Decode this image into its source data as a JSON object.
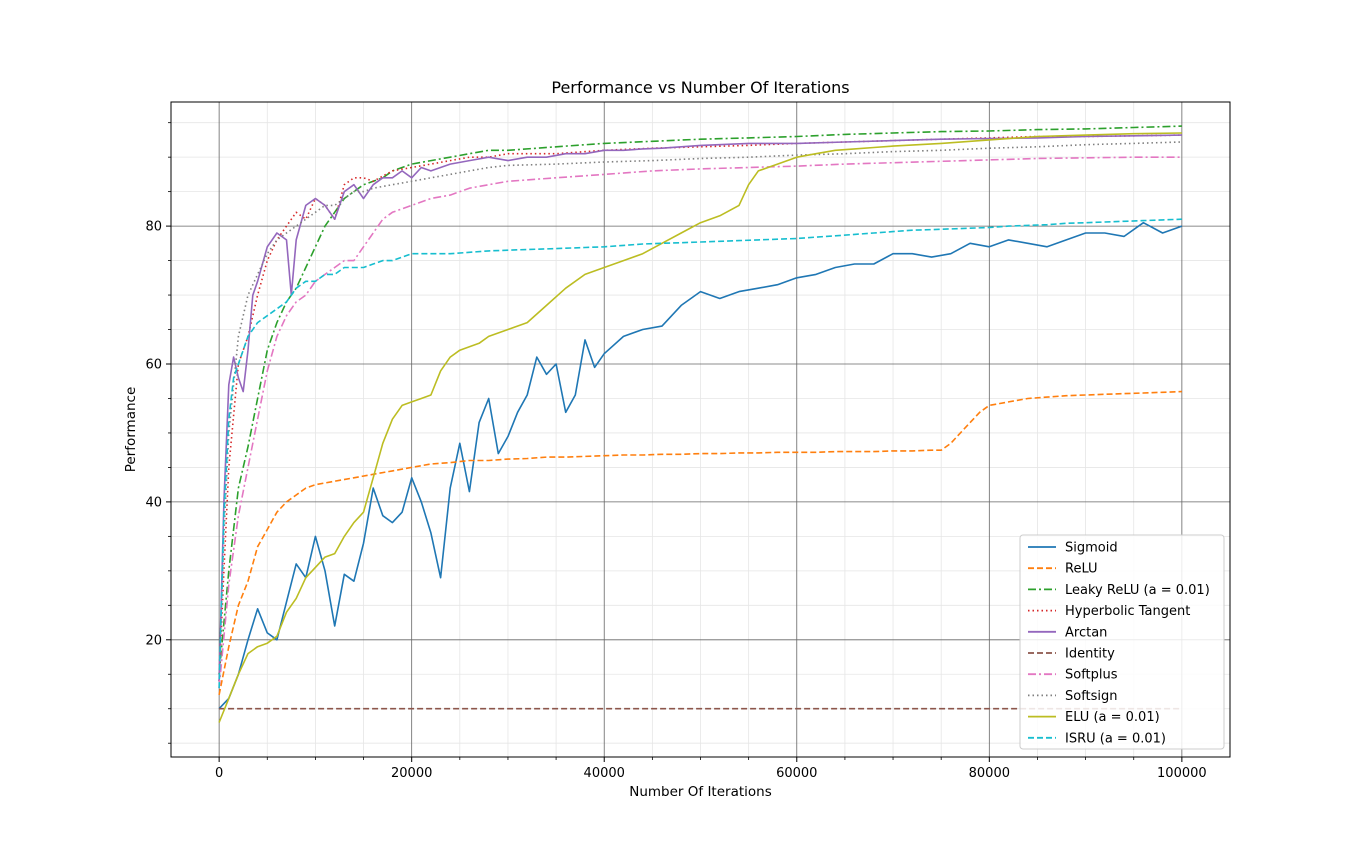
{
  "chart_data": {
    "type": "line",
    "title": "Performance vs Number Of Iterations",
    "xlabel": "Number Of Iterations",
    "ylabel": "Performance",
    "xlim": [
      -5000,
      105000
    ],
    "ylim": [
      3,
      98
    ],
    "xticks": [
      0,
      20000,
      40000,
      60000,
      80000,
      100000
    ],
    "yticks": [
      20,
      40,
      60,
      80
    ],
    "grid": true,
    "legend_position": "lower right",
    "series": [
      {
        "name": "Sigmoid",
        "color": "#1f77b4",
        "dash": "solid",
        "x": [
          0,
          1000,
          2000,
          3000,
          4000,
          5000,
          6000,
          7000,
          8000,
          9000,
          10000,
          11000,
          12000,
          13000,
          14000,
          15000,
          16000,
          17000,
          18000,
          19000,
          20000,
          21000,
          22000,
          23000,
          24000,
          25000,
          26000,
          27000,
          28000,
          29000,
          30000,
          31000,
          32000,
          33000,
          34000,
          35000,
          36000,
          37000,
          38000,
          39000,
          40000,
          42000,
          44000,
          46000,
          48000,
          50000,
          52000,
          54000,
          56000,
          58000,
          60000,
          62000,
          64000,
          66000,
          68000,
          70000,
          72000,
          74000,
          76000,
          78000,
          80000,
          82000,
          84000,
          86000,
          88000,
          90000,
          92000,
          94000,
          96000,
          98000,
          100000
        ],
        "y": [
          10,
          11.5,
          15,
          20,
          24.5,
          21,
          20,
          25.5,
          31,
          29,
          35,
          30,
          22,
          29.5,
          28.5,
          34,
          42,
          38,
          37,
          38.5,
          43.5,
          40,
          35.5,
          29,
          42,
          48.5,
          41.5,
          51.5,
          55,
          47,
          49.5,
          53,
          55.5,
          61,
          58.5,
          60,
          53,
          55.5,
          63.5,
          59.5,
          61.5,
          64,
          65,
          65.5,
          68.5,
          70.5,
          69.5,
          70.5,
          71,
          71.5,
          72.5,
          73,
          74,
          74.5,
          74.5,
          76,
          76,
          75.5,
          76,
          77.5,
          77,
          78,
          77.5,
          77,
          78,
          79,
          79,
          78.5,
          80.5,
          79,
          80
        ]
      },
      {
        "name": "ReLU",
        "color": "#ff7f0e",
        "dash": "6,3",
        "x": [
          0,
          1000,
          2000,
          3000,
          4000,
          5000,
          6000,
          7000,
          8000,
          9000,
          10000,
          12000,
          14000,
          16000,
          18000,
          20000,
          22000,
          24000,
          26000,
          28000,
          30000,
          32000,
          34000,
          36000,
          38000,
          40000,
          42000,
          44000,
          46000,
          48000,
          50000,
          52000,
          54000,
          56000,
          58000,
          60000,
          62000,
          64000,
          66000,
          68000,
          70000,
          72000,
          74000,
          75000,
          76000,
          77000,
          78000,
          79000,
          80000,
          82000,
          84000,
          86000,
          88000,
          90000,
          92000,
          94000,
          96000,
          98000,
          100000
        ],
        "y": [
          12,
          19,
          25,
          28.5,
          33.5,
          36,
          38.5,
          40,
          41,
          42,
          42.5,
          43,
          43.5,
          44,
          44.5,
          45,
          45.5,
          45.7,
          46,
          46,
          46.2,
          46.3,
          46.5,
          46.5,
          46.6,
          46.7,
          46.8,
          46.8,
          46.9,
          46.9,
          47,
          47,
          47.1,
          47.1,
          47.2,
          47.2,
          47.2,
          47.3,
          47.3,
          47.3,
          47.4,
          47.4,
          47.5,
          47.5,
          48.5,
          50,
          51.5,
          53,
          54,
          54.5,
          55,
          55.2,
          55.4,
          55.5,
          55.6,
          55.7,
          55.8,
          55.9,
          56
        ]
      },
      {
        "name": "Leaky ReLU (a = 0.01)",
        "color": "#2ca02c",
        "dash": "8,3,2,3",
        "x": [
          0,
          1000,
          2000,
          3000,
          4000,
          5000,
          6000,
          7000,
          8000,
          9000,
          10000,
          11000,
          12000,
          13000,
          14000,
          15000,
          16000,
          17000,
          18000,
          20000,
          22000,
          24000,
          26000,
          28000,
          30000,
          35000,
          40000,
          45000,
          50000,
          55000,
          60000,
          65000,
          70000,
          75000,
          80000,
          85000,
          90000,
          95000,
          100000
        ],
        "y": [
          15,
          30,
          42,
          48,
          55,
          62,
          66,
          69,
          71,
          74,
          77,
          80,
          82,
          84,
          85,
          86,
          86.5,
          87,
          88,
          89,
          89.5,
          90,
          90.5,
          91,
          91,
          91.5,
          92,
          92.3,
          92.6,
          92.8,
          93,
          93.3,
          93.5,
          93.7,
          93.8,
          94,
          94.1,
          94.3,
          94.5
        ]
      },
      {
        "name": "Hyperbolic Tangent",
        "color": "#d62728",
        "dash": "1.5,3",
        "x": [
          0,
          500,
          1000,
          2000,
          3000,
          4000,
          5000,
          6000,
          7000,
          8000,
          9000,
          10000,
          11000,
          12000,
          13000,
          14000,
          15000,
          16000,
          18000,
          20000,
          22000,
          24000,
          26000,
          28000,
          30000,
          35000,
          40000,
          45000,
          50000,
          55000,
          60000,
          65000,
          70000,
          75000,
          80000,
          85000,
          90000,
          95000,
          100000
        ],
        "y": [
          14,
          30,
          45,
          60,
          64,
          70,
          75,
          78,
          80,
          82,
          81,
          84,
          83,
          81,
          86,
          87,
          87,
          86.5,
          88,
          88.5,
          89,
          89.5,
          90,
          90,
          90.5,
          90.5,
          91,
          91.3,
          91.5,
          91.7,
          92,
          92.2,
          92.4,
          92.6,
          92.8,
          93,
          93,
          93.1,
          93.2
        ]
      },
      {
        "name": "Arctan",
        "color": "#9467bd",
        "dash": "solid",
        "x": [
          0,
          500,
          1000,
          1500,
          2000,
          2500,
          3000,
          3500,
          4000,
          5000,
          6000,
          7000,
          7500,
          8000,
          9000,
          10000,
          11000,
          12000,
          13000,
          14000,
          15000,
          16000,
          17000,
          18000,
          19000,
          20000,
          21000,
          22000,
          24000,
          26000,
          28000,
          30000,
          32000,
          34000,
          36000,
          38000,
          40000,
          42000,
          44000,
          46000,
          48000,
          50000,
          55000,
          60000,
          65000,
          70000,
          75000,
          80000,
          85000,
          90000,
          95000,
          100000
        ],
        "y": [
          14,
          40,
          57,
          61,
          58,
          56,
          62,
          70,
          72,
          77,
          79,
          78,
          70,
          78,
          83,
          84,
          83,
          81,
          85,
          86,
          84,
          86,
          87,
          87,
          88,
          87,
          88.5,
          88,
          89,
          89.5,
          90,
          89.5,
          90,
          90,
          90.5,
          90.5,
          91,
          91,
          91.2,
          91.3,
          91.5,
          91.7,
          92,
          92,
          92.2,
          92.4,
          92.6,
          92.7,
          92.8,
          93,
          93.1,
          93.2
        ]
      },
      {
        "name": "Identity",
        "color": "#8c564b",
        "dash": "6,3",
        "x": [
          0,
          20000,
          40000,
          60000,
          80000,
          100000
        ],
        "y": [
          10,
          10,
          10,
          10,
          10,
          10
        ]
      },
      {
        "name": "Softplus",
        "color": "#e377c2",
        "dash": "8,3,2,3",
        "x": [
          0,
          1000,
          2000,
          3000,
          4000,
          5000,
          6000,
          7000,
          8000,
          9000,
          10000,
          11000,
          12000,
          13000,
          14000,
          15000,
          16000,
          17000,
          18000,
          20000,
          22000,
          24000,
          26000,
          28000,
          30000,
          35000,
          40000,
          45000,
          50000,
          55000,
          60000,
          65000,
          70000,
          75000,
          80000,
          85000,
          90000,
          95000,
          100000
        ],
        "y": [
          13,
          28,
          38,
          45,
          52,
          59,
          64,
          67,
          69,
          70,
          72,
          73,
          74,
          75,
          75,
          77,
          79,
          81,
          82,
          83,
          84,
          84.5,
          85.5,
          86,
          86.5,
          87,
          87.5,
          88,
          88.3,
          88.5,
          88.7,
          89,
          89.2,
          89.4,
          89.6,
          89.8,
          89.9,
          90,
          90
        ]
      },
      {
        "name": "Softsign",
        "color": "#7f7f7f",
        "dash": "1.5,3",
        "x": [
          0,
          500,
          1000,
          2000,
          3000,
          4000,
          5000,
          6000,
          7000,
          8000,
          9000,
          10000,
          11000,
          12000,
          13000,
          14000,
          15000,
          16000,
          18000,
          20000,
          22000,
          24000,
          26000,
          28000,
          30000,
          35000,
          40000,
          45000,
          50000,
          55000,
          60000,
          65000,
          70000,
          75000,
          80000,
          85000,
          90000,
          95000,
          100000
        ],
        "y": [
          15,
          35,
          50,
          64,
          70,
          73,
          76,
          78,
          79,
          80,
          81,
          82,
          83,
          83,
          84,
          85,
          85,
          85.5,
          86,
          86.5,
          87,
          87.5,
          88,
          88.5,
          88.8,
          89,
          89.3,
          89.5,
          89.8,
          90,
          90.3,
          90.5,
          90.8,
          91,
          91.3,
          91.5,
          91.8,
          92,
          92.2
        ]
      },
      {
        "name": "ELU (a = 0.01)",
        "color": "#bcbd22",
        "dash": "solid",
        "x": [
          0,
          1000,
          2000,
          3000,
          4000,
          5000,
          6000,
          7000,
          8000,
          9000,
          10000,
          11000,
          12000,
          13000,
          14000,
          15000,
          16000,
          17000,
          18000,
          19000,
          20000,
          21000,
          22000,
          23000,
          24000,
          25000,
          26000,
          27000,
          28000,
          30000,
          32000,
          34000,
          36000,
          38000,
          40000,
          42000,
          44000,
          46000,
          48000,
          50000,
          52000,
          54000,
          55000,
          56000,
          58000,
          60000,
          62000,
          64000,
          66000,
          68000,
          70000,
          75000,
          80000,
          85000,
          90000,
          95000,
          100000
        ],
        "y": [
          8,
          11.5,
          15,
          18,
          19,
          19.5,
          20.5,
          24,
          26,
          29,
          30.5,
          32,
          32.5,
          35,
          37,
          38.5,
          43.5,
          48.5,
          52,
          54,
          54.5,
          55,
          55.5,
          59,
          61,
          62,
          62.5,
          63,
          64,
          65,
          66,
          68.5,
          71,
          73,
          74,
          75,
          76,
          77.5,
          79,
          80.5,
          81.5,
          83,
          86,
          88,
          89,
          90,
          90.5,
          91,
          91.2,
          91.4,
          91.6,
          92,
          92.5,
          93,
          93.2,
          93.4,
          93.5
        ]
      },
      {
        "name": "ISRU (a = 0.01)",
        "color": "#17becf",
        "dash": "6,3",
        "x": [
          0,
          500,
          1000,
          1500,
          2000,
          3000,
          4000,
          5000,
          6000,
          7000,
          8000,
          9000,
          10000,
          11000,
          12000,
          13000,
          14000,
          15000,
          16000,
          17000,
          18000,
          19000,
          20000,
          22000,
          24000,
          26000,
          28000,
          30000,
          32000,
          34000,
          36000,
          38000,
          40000,
          42000,
          44000,
          46000,
          48000,
          50000,
          52000,
          54000,
          56000,
          58000,
          60000,
          62000,
          64000,
          66000,
          68000,
          70000,
          72000,
          74000,
          76000,
          78000,
          80000,
          82000,
          84000,
          86000,
          88000,
          90000,
          92000,
          94000,
          96000,
          98000,
          100000
        ],
        "y": [
          13,
          38,
          52,
          58,
          60,
          64,
          66,
          67,
          68,
          69,
          71,
          72,
          72,
          73,
          73,
          74,
          74,
          74,
          74.5,
          75,
          75,
          75.5,
          76,
          76,
          76,
          76.2,
          76.4,
          76.5,
          76.6,
          76.7,
          76.8,
          76.9,
          77,
          77.2,
          77.4,
          77.5,
          77.6,
          77.7,
          77.8,
          77.9,
          78,
          78.1,
          78.2,
          78.4,
          78.6,
          78.8,
          79,
          79.2,
          79.4,
          79.5,
          79.6,
          79.7,
          79.8,
          80,
          80.1,
          80.2,
          80.4,
          80.5,
          80.6,
          80.7,
          80.8,
          80.9,
          81
        ]
      }
    ]
  }
}
